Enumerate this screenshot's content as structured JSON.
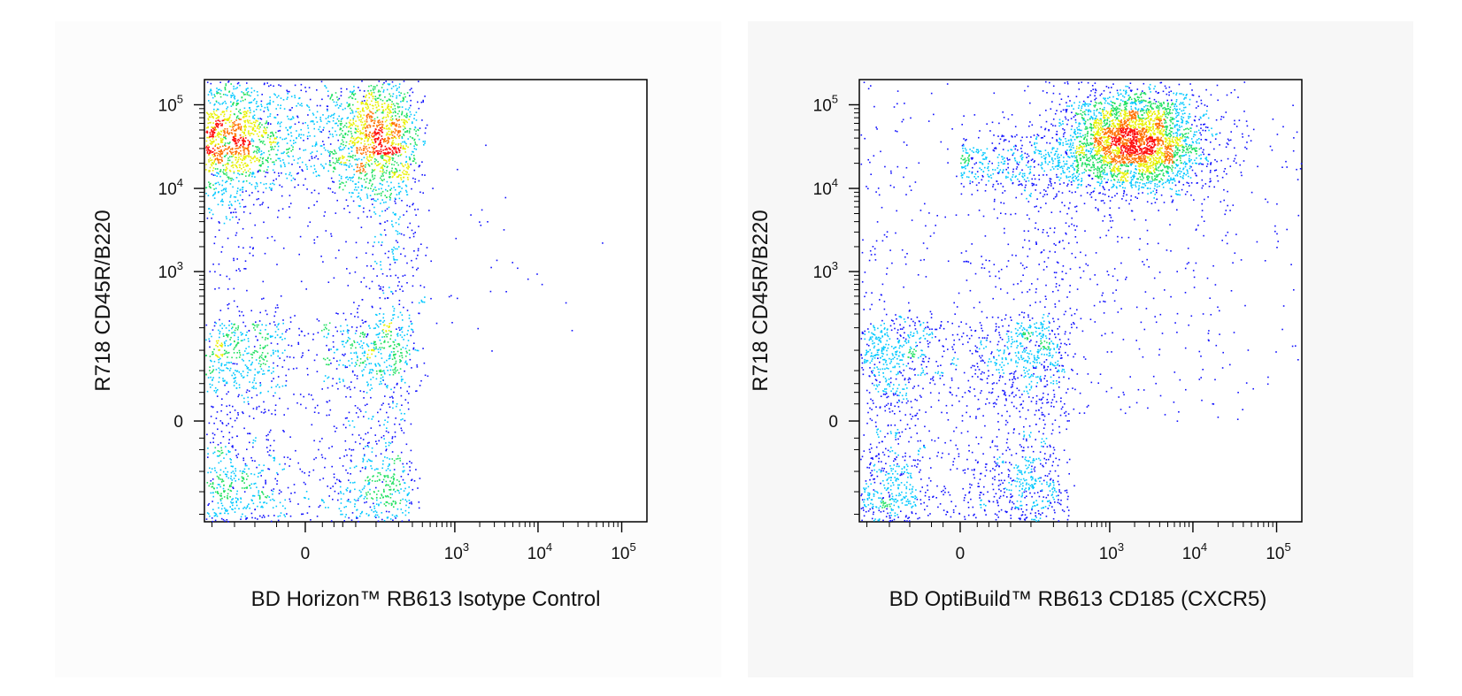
{
  "chart_data": [
    {
      "type": "scatter",
      "subtype": "flow-cytometry-density-dot-plot",
      "xlabel": "BD Horizon™ RB613 Isotype Control",
      "ylabel": "R718 CD45R/B220",
      "x_scale": "biexponential",
      "y_scale": "biexponential",
      "x_ticks": [
        {
          "base": "0",
          "exp": ""
        },
        {
          "base": "10",
          "exp": "3"
        },
        {
          "base": "10",
          "exp": "4"
        },
        {
          "base": "10",
          "exp": "5"
        }
      ],
      "y_ticks": [
        {
          "base": "0",
          "exp": ""
        },
        {
          "base": "10",
          "exp": "3"
        },
        {
          "base": "10",
          "exp": "4"
        },
        {
          "base": "10",
          "exp": "5"
        }
      ],
      "grid": false,
      "density_colors": [
        "#1010ff",
        "#00c8ff",
        "#20e060",
        "#e8f000",
        "#ff7000",
        "#ff1010"
      ],
      "populations": [
        {
          "x": 0,
          "y": 40000,
          "spread_x": 140,
          "spread_y": 0.38,
          "count": 2600
        },
        {
          "x": 0,
          "y": 0,
          "spread_x": 140,
          "spread_y": 120,
          "count": 1900
        },
        {
          "x": 80,
          "y": 3000,
          "spread_x": 160,
          "spread_y": 1.1,
          "count": 550
        },
        {
          "x": 2500,
          "y": 1500,
          "spread_x": 0.55,
          "spread_y": 0.6,
          "count": 35
        }
      ]
    },
    {
      "type": "scatter",
      "subtype": "flow-cytometry-density-dot-plot",
      "xlabel": "BD OptiBuild™ RB613 CD185 (CXCR5)",
      "ylabel": "R718 CD45R/B220",
      "x_scale": "biexponential",
      "y_scale": "biexponential",
      "x_ticks": [
        {
          "base": "0",
          "exp": ""
        },
        {
          "base": "10",
          "exp": "3"
        },
        {
          "base": "10",
          "exp": "4"
        },
        {
          "base": "10",
          "exp": "5"
        }
      ],
      "y_ticks": [
        {
          "base": "0",
          "exp": ""
        },
        {
          "base": "10",
          "exp": "3"
        },
        {
          "base": "10",
          "exp": "4"
        },
        {
          "base": "10",
          "exp": "5"
        }
      ],
      "grid": false,
      "density_colors": [
        "#1010ff",
        "#00c8ff",
        "#20e060",
        "#e8f000",
        "#ff7000",
        "#ff1010"
      ],
      "populations": [
        {
          "x": 2000,
          "y": 40000,
          "spread_x": 0.42,
          "spread_y": 0.3,
          "count": 2800
        },
        {
          "x": 0,
          "y": 0,
          "spread_x": 120,
          "spread_y": 120,
          "count": 2000
        },
        {
          "x": 300,
          "y": 20000,
          "spread_x": 1.2,
          "spread_y": 0.2,
          "count": 700
        },
        {
          "x": 60,
          "y": 2000,
          "spread_x": 200,
          "spread_y": 1.2,
          "count": 500
        },
        {
          "x": 1500,
          "y": 1500,
          "spread_x": 1.3,
          "spread_y": 1.3,
          "count": 450
        }
      ]
    }
  ]
}
